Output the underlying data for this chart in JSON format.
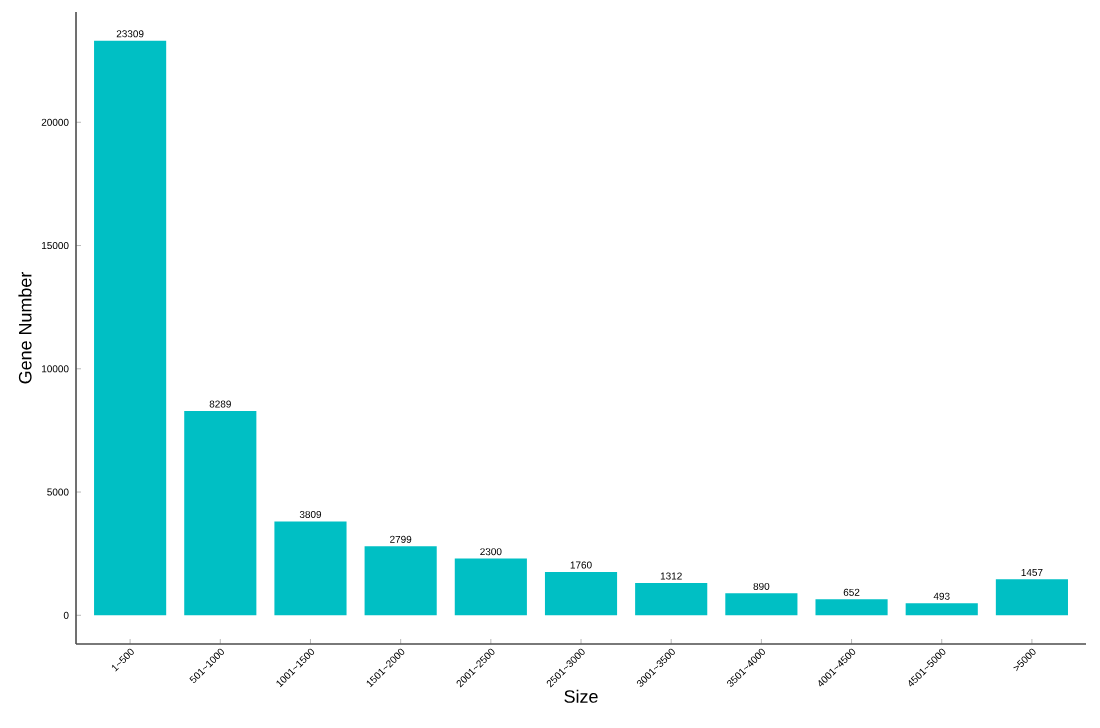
{
  "chart_data": {
    "type": "bar",
    "xlabel": "Size",
    "ylabel": "Gene Number",
    "categories": [
      "1~500",
      "501~1000",
      "1001~1500",
      "1501~2000",
      "2001~2500",
      "2501~3000",
      "3001~3500",
      "3501~4000",
      "4001~4500",
      "4501~5000",
      ">5000"
    ],
    "values": [
      23309,
      8289,
      3809,
      2799,
      2300,
      1760,
      1312,
      890,
      652,
      493,
      1457
    ],
    "color": "#00bfc4",
    "data_labels": true,
    "grid": false,
    "ylim": [
      -1165,
      24474
    ],
    "yticks": [
      0,
      5000,
      10000,
      15000,
      20000
    ]
  }
}
